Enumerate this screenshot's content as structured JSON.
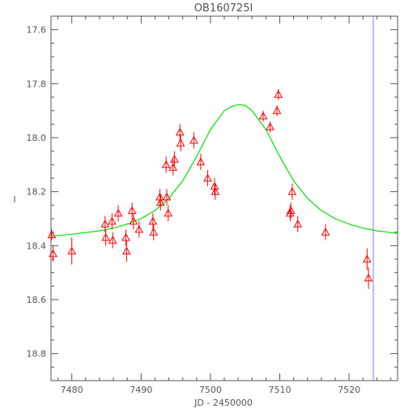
{
  "chart_data": {
    "type": "scatter",
    "title": "OB160725I",
    "xlabel": "JD - 2450000",
    "ylabel": "I",
    "xlim": [
      7477,
      7527
    ],
    "ylim": [
      18.9,
      17.55
    ],
    "y_inverted": true,
    "x_ticks": [
      7480,
      7490,
      7500,
      7510,
      7520
    ],
    "y_ticks": [
      "17.6",
      "17.8",
      "18.0",
      "18.2",
      "18.4",
      "18.6",
      "18.8"
    ],
    "colors": {
      "data": "#ff0000",
      "model": "#00e000",
      "marker_line": "#8080ff",
      "axes": "#555555"
    },
    "series": [
      {
        "marker": "triangle-open",
        "points": [
          {
            "x": 7477.1,
            "y": 18.36,
            "err": 0.02
          },
          {
            "x": 7477.3,
            "y": 18.43,
            "err": 0.03
          },
          {
            "x": 7480.0,
            "y": 18.42,
            "err": 0.05
          },
          {
            "x": 7484.8,
            "y": 18.32,
            "err": 0.03
          },
          {
            "x": 7484.9,
            "y": 18.37,
            "err": 0.03
          },
          {
            "x": 7485.8,
            "y": 18.31,
            "err": 0.03
          },
          {
            "x": 7485.9,
            "y": 18.38,
            "err": 0.03
          },
          {
            "x": 7486.7,
            "y": 18.28,
            "err": 0.03
          },
          {
            "x": 7487.8,
            "y": 18.37,
            "err": 0.03
          },
          {
            "x": 7487.9,
            "y": 18.42,
            "err": 0.04
          },
          {
            "x": 7488.7,
            "y": 18.27,
            "err": 0.03
          },
          {
            "x": 7488.9,
            "y": 18.31,
            "err": 0.03
          },
          {
            "x": 7489.7,
            "y": 18.34,
            "err": 0.03
          },
          {
            "x": 7491.7,
            "y": 18.31,
            "err": 0.03
          },
          {
            "x": 7491.8,
            "y": 18.35,
            "err": 0.03
          },
          {
            "x": 7492.7,
            "y": 18.22,
            "err": 0.03
          },
          {
            "x": 7492.8,
            "y": 18.24,
            "err": 0.03
          },
          {
            "x": 7493.6,
            "y": 18.1,
            "err": 0.03
          },
          {
            "x": 7493.7,
            "y": 18.22,
            "err": 0.03
          },
          {
            "x": 7493.9,
            "y": 18.28,
            "err": 0.03
          },
          {
            "x": 7494.6,
            "y": 18.11,
            "err": 0.03
          },
          {
            "x": 7494.8,
            "y": 18.08,
            "err": 0.03
          },
          {
            "x": 7495.6,
            "y": 17.98,
            "err": 0.03
          },
          {
            "x": 7495.7,
            "y": 18.02,
            "err": 0.03
          },
          {
            "x": 7497.6,
            "y": 18.01,
            "err": 0.03
          },
          {
            "x": 7498.6,
            "y": 18.09,
            "err": 0.03
          },
          {
            "x": 7499.6,
            "y": 18.15,
            "err": 0.03
          },
          {
            "x": 7500.6,
            "y": 18.18,
            "err": 0.03
          },
          {
            "x": 7500.7,
            "y": 18.2,
            "err": 0.03
          },
          {
            "x": 7507.6,
            "y": 17.92,
            "err": 0.02
          },
          {
            "x": 7508.6,
            "y": 17.96,
            "err": 0.02
          },
          {
            "x": 7509.6,
            "y": 17.9,
            "err": 0.02
          },
          {
            "x": 7509.8,
            "y": 17.84,
            "err": 0.02
          },
          {
            "x": 7511.5,
            "y": 18.28,
            "err": 0.03
          },
          {
            "x": 7511.6,
            "y": 18.27,
            "err": 0.03
          },
          {
            "x": 7511.8,
            "y": 18.2,
            "err": 0.03
          },
          {
            "x": 7512.6,
            "y": 18.32,
            "err": 0.03
          },
          {
            "x": 7516.6,
            "y": 18.35,
            "err": 0.03
          },
          {
            "x": 7522.6,
            "y": 18.45,
            "err": 0.04
          },
          {
            "x": 7522.8,
            "y": 18.52,
            "err": 0.04
          }
        ]
      }
    ],
    "model_curve": {
      "description": "green fit curve",
      "x": [
        7477,
        7480,
        7484,
        7486,
        7488,
        7490,
        7492,
        7494,
        7496,
        7498,
        7500,
        7502,
        7503,
        7504,
        7505,
        7506,
        7508,
        7510,
        7512,
        7514,
        7516,
        7518,
        7520,
        7522,
        7524,
        7527
      ],
      "y": [
        18.365,
        18.358,
        18.345,
        18.335,
        18.32,
        18.3,
        18.27,
        18.225,
        18.16,
        18.07,
        17.97,
        17.9,
        17.885,
        17.878,
        17.88,
        17.9,
        17.97,
        18.07,
        18.16,
        18.225,
        18.27,
        18.3,
        18.32,
        18.335,
        18.345,
        18.355
      ]
    },
    "vertical_line_x": 7523.5
  }
}
